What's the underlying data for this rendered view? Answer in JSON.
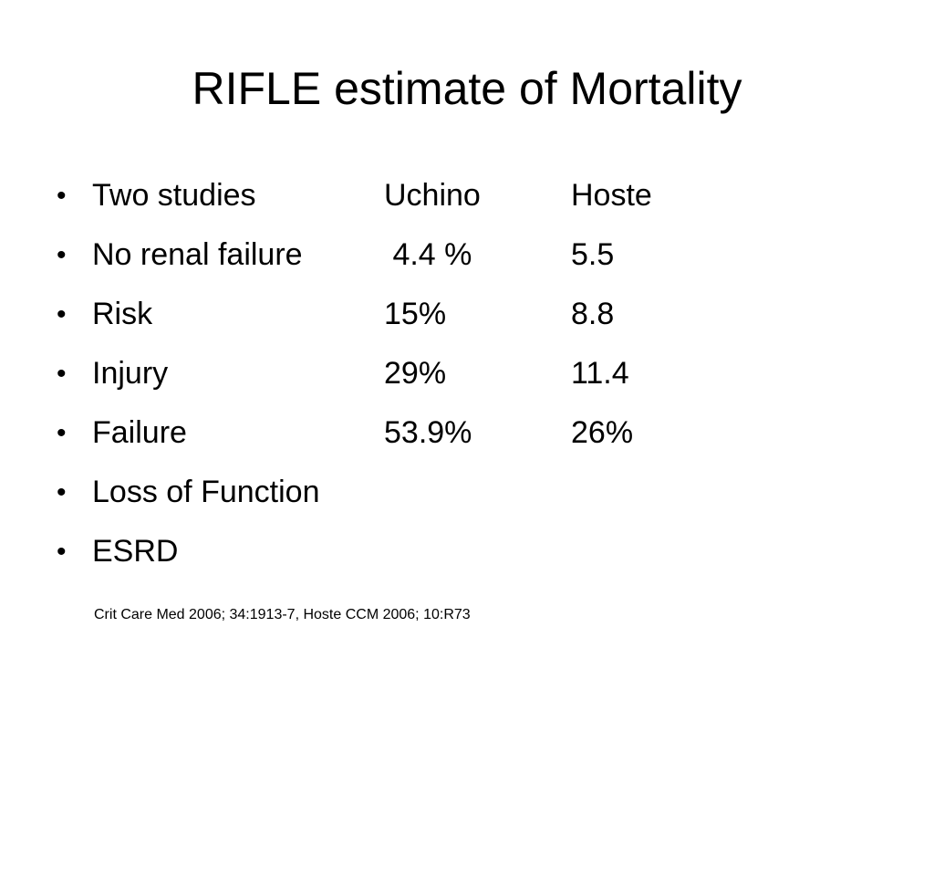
{
  "slide": {
    "title": "RIFLE estimate of Mortality",
    "bullet_glyph": "•",
    "rows": [
      {
        "label": "Two studies",
        "col1": "Uchino",
        "col2": "Hoste"
      },
      {
        "label": "No renal failure",
        "col1": " 4.4 %",
        "col2": "5.5"
      },
      {
        "label": "Risk",
        "col1": "15%",
        "col2": "8.8"
      },
      {
        "label": "Injury",
        "col1": "29%",
        "col2": "11.4"
      },
      {
        "label": "Failure",
        "col1": "53.9%",
        "col2": "26%"
      },
      {
        "label": "Loss of Function",
        "col1": "",
        "col2": ""
      },
      {
        "label": "ESRD",
        "col1": "",
        "col2": ""
      }
    ],
    "citation": "Crit Care Med 2006; 34:1913-7, Hoste CCM 2006; 10:R73"
  }
}
